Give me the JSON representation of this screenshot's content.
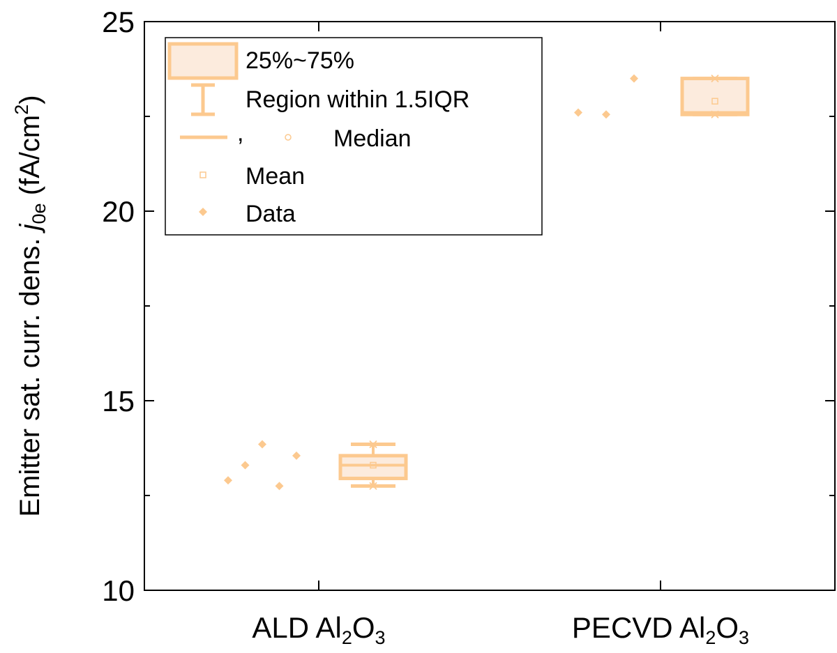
{
  "chart_data": {
    "type": "box",
    "ylabel_prefix": "Emitter sat. curr. dens. ",
    "ylabel_symbol": "j",
    "ylabel_symbol_sub": "0e",
    "ylabel_unit_open": " (fA/cm",
    "ylabel_unit_sup": "2",
    "ylabel_unit_close": ")",
    "ylim": [
      10,
      25
    ],
    "yticks": [
      10,
      15,
      20,
      25
    ],
    "yticklabels": [
      "10",
      "15",
      "20",
      "25"
    ],
    "grid": false,
    "legend_position": "top-left",
    "color": "#FCC98F",
    "categories": [
      {
        "base": "ALD Al",
        "sub1": "2",
        "mid": "O",
        "sub2": "3"
      },
      {
        "base": "PECVD Al",
        "sub1": "2",
        "mid": "O",
        "sub2": "3"
      }
    ],
    "series": [
      {
        "category_index": 0,
        "data": [
          12.9,
          13.3,
          13.85,
          12.75,
          13.55
        ],
        "q1": 12.95,
        "median": 13.3,
        "q3": 13.55,
        "whisker_low": 12.75,
        "whisker_high": 13.85,
        "mean": 13.3,
        "min": 12.75,
        "max": 13.85
      },
      {
        "category_index": 1,
        "data": [
          22.6,
          22.55,
          23.5
        ],
        "q1": 22.55,
        "median": 22.6,
        "q3": 23.5,
        "whisker_low": 22.55,
        "whisker_high": 23.5,
        "mean": 22.9,
        "min": 22.55,
        "max": 23.5
      }
    ],
    "legend": {
      "box_label": "25%~75%",
      "whisker_label": "Region within 1.5IQR",
      "median_separator": ",",
      "median_label": "Median",
      "mean_label": "Mean",
      "data_label": "Data"
    }
  }
}
